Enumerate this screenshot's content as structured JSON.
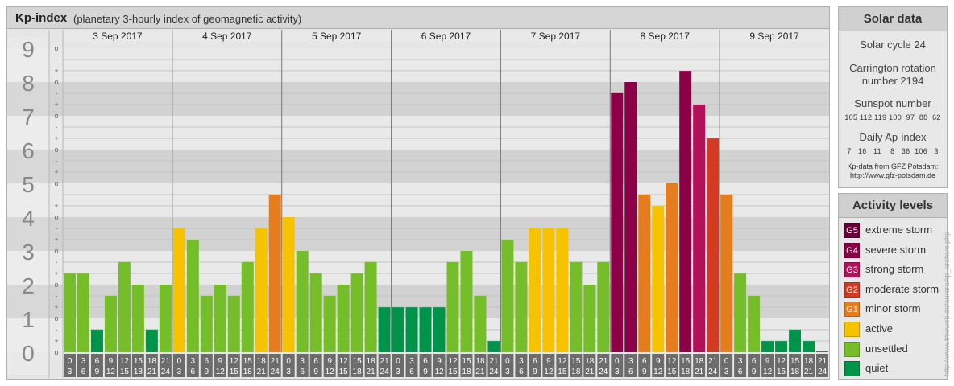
{
  "title": "Kp-index",
  "subtitle": "(planetary 3-hourly index of geomagnetic activity)",
  "chart_data": {
    "type": "bar",
    "title": "Kp-index",
    "subtitle": "(planetary 3-hourly index of geomagnetic activity)",
    "ylim": [
      0,
      9
    ],
    "y_ticks": [
      "0",
      "1",
      "2",
      "3",
      "4",
      "5",
      "6",
      "7",
      "8",
      "9"
    ],
    "minor_ticks": [
      "o",
      "+",
      "-"
    ],
    "days": [
      "3 Sep 2017",
      "4 Sep 2017",
      "5 Sep 2017",
      "6 Sep 2017",
      "7 Sep 2017",
      "8 Sep 2017",
      "9 Sep 2017"
    ],
    "slot_start": [
      "0",
      "3",
      "6",
      "9",
      "12",
      "15",
      "18",
      "21"
    ],
    "slot_end": [
      "3",
      "6",
      "9",
      "12",
      "15",
      "18",
      "21",
      "24"
    ],
    "values": [
      [
        2.33,
        2.33,
        0.67,
        1.67,
        2.67,
        2.0,
        0.67,
        2.0
      ],
      [
        3.67,
        3.33,
        1.67,
        2.0,
        1.67,
        2.67,
        3.67,
        4.67
      ],
      [
        4.0,
        3.0,
        2.33,
        1.67,
        2.0,
        2.33,
        2.67,
        1.33
      ],
      [
        1.33,
        1.33,
        1.33,
        1.33,
        2.67,
        3.0,
        1.67,
        0.33
      ],
      [
        3.33,
        2.67,
        3.67,
        3.67,
        3.67,
        2.67,
        2.0,
        2.67
      ],
      [
        7.67,
        8.0,
        4.67,
        4.33,
        5.0,
        8.33,
        7.33,
        6.33
      ],
      [
        4.67,
        2.33,
        1.67,
        0.33,
        0.33,
        0.67,
        0.33,
        0.0
      ]
    ],
    "last_value_extra": 0.0
  },
  "solar": {
    "heading": "Solar data",
    "cycle": "Solar cycle 24",
    "carrington_line1": "Carrington rotation",
    "carrington_line2": "number 2194",
    "sunspot_label": "Sunspot number",
    "sunspot_values": "105 112 119 100  97  88  62",
    "ap_label": "Daily Ap-index",
    "ap_values": "7   16   11    8   36  106   3",
    "source_line1": "Kp-data from GFZ Potsdam:",
    "source_line2": "http://www.gfz-potsdam.de"
  },
  "activity": {
    "heading": "Activity levels",
    "levels": [
      {
        "code": "G5",
        "label": "extreme storm",
        "color": "#6a0037"
      },
      {
        "code": "G4",
        "label": "severe storm",
        "color": "#8b0046"
      },
      {
        "code": "G3",
        "label": "strong storm",
        "color": "#b3105a"
      },
      {
        "code": "G2",
        "label": "moderate storm",
        "color": "#d33a22"
      },
      {
        "code": "G1",
        "label": "minor storm",
        "color": "#e57c1e"
      },
      {
        "code": "",
        "label": "active",
        "color": "#f7c200"
      },
      {
        "code": "",
        "label": "unsettled",
        "color": "#76bd2a"
      },
      {
        "code": "",
        "label": "quiet",
        "color": "#00934a"
      }
    ]
  },
  "credit": "http://www.fmeweb.de/aurora/kp_archive.php"
}
